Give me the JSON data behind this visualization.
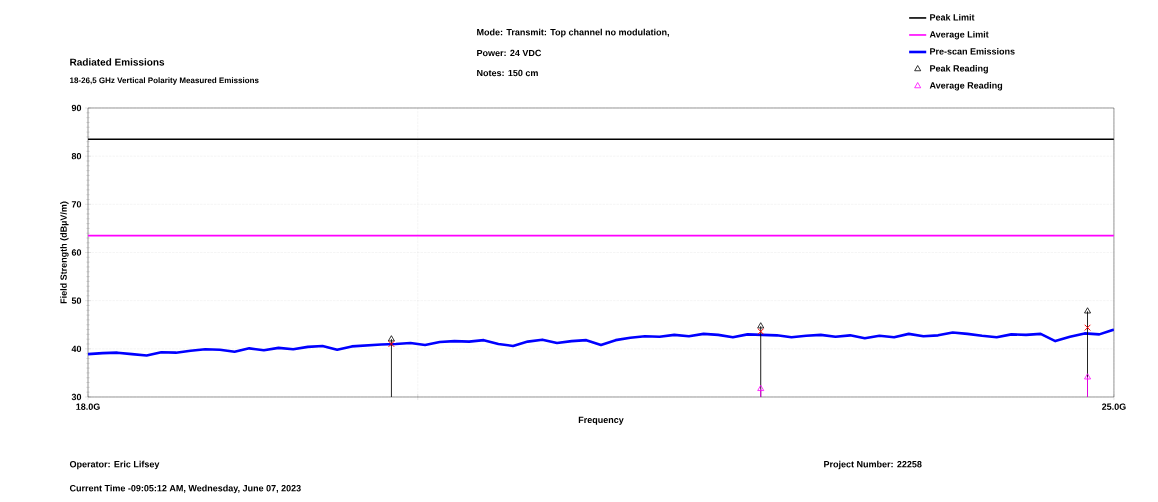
{
  "chart_data": {
    "type": "line",
    "title": "Radiated Emissions",
    "subtitle": "18-26,5 GHz Vertical Polarity Measured Emissions",
    "xlabel": "Frequency",
    "ylabel": "Field Strength (dBµV/m)",
    "xlim": [
      18,
      25
    ],
    "xticks": [
      {
        "value": 18,
        "label": "18.0G"
      },
      {
        "value": 20.25,
        "label": null
      },
      {
        "value": 25,
        "label": "25.0G"
      }
    ],
    "ylim": [
      30,
      90
    ],
    "yticks": [
      30,
      40,
      50,
      60,
      70,
      80,
      90
    ],
    "grid": true,
    "legend": "top right",
    "annotations": [
      "Mode: Transmit: Top channel no modulation,",
      "Power: 24 VDC",
      "Notes: 150 cm",
      "Operator: Eric Lifsey",
      "Current Time -09:05:12 AM, Wednesday, June 07, 2023",
      "Project Number: 22258"
    ],
    "series": [
      {
        "name": "Peak Limit",
        "type": "line",
        "color": "#000000",
        "marker": "none",
        "x": [
          18,
          25
        ],
        "values": [
          83.5,
          83.5
        ]
      },
      {
        "name": "Average Limit",
        "type": "line",
        "color": "#ff00ff",
        "marker": "none",
        "x": [
          18,
          25
        ],
        "values": [
          63.5,
          63.5
        ]
      },
      {
        "name": "Pre-scan Emissions",
        "color": "#0000ff",
        "marker": "none",
        "x": [
          18.0,
          18.1,
          18.2,
          18.3,
          18.4,
          18.5,
          18.6,
          18.7,
          18.8,
          18.9,
          19.0,
          19.1,
          19.2,
          19.3,
          19.4,
          19.5,
          19.6,
          19.7,
          19.8,
          19.9,
          20.0,
          20.1,
          20.2,
          20.3,
          20.4,
          20.5,
          20.6,
          20.7,
          20.8,
          20.9,
          21.0,
          21.1,
          21.2,
          21.3,
          21.4,
          21.5,
          21.6,
          21.7,
          21.8,
          21.9,
          22.0,
          22.1,
          22.2,
          22.3,
          22.4,
          22.5,
          22.6,
          22.7,
          22.8,
          22.9,
          23.0,
          23.1,
          23.2,
          23.3,
          23.4,
          23.5,
          23.6,
          23.7,
          23.8,
          23.9,
          24.0,
          24.1,
          24.2,
          24.3,
          24.4,
          24.5,
          24.6,
          24.7,
          24.8,
          24.9,
          25.0
        ],
        "values": [
          38.9,
          39.1,
          39.2,
          38.9,
          38.6,
          39.3,
          39.2,
          39.6,
          39.9,
          39.8,
          39.4,
          40.1,
          39.7,
          40.2,
          39.9,
          40.4,
          40.6,
          39.8,
          40.5,
          40.7,
          40.9,
          41.0,
          41.2,
          40.8,
          41.4,
          41.6,
          41.5,
          41.8,
          41.0,
          40.6,
          41.5,
          41.9,
          41.2,
          41.6,
          41.8,
          40.8,
          41.8,
          42.3,
          42.6,
          42.5,
          42.9,
          42.6,
          43.1,
          42.9,
          42.4,
          43.0,
          42.9,
          42.8,
          42.4,
          42.7,
          42.9,
          42.5,
          42.8,
          42.2,
          42.7,
          42.4,
          43.1,
          42.6,
          42.8,
          43.4,
          43.1,
          42.7,
          42.4,
          43.0,
          42.9,
          43.1,
          41.6,
          42.5,
          43.2,
          43.0,
          44.0
        ]
      },
      {
        "name": "Peak Reading",
        "type": "lollipop",
        "color": "#000000",
        "marker": "triangle",
        "x": [
          20.07,
          22.59,
          24.82
        ],
        "values": [
          42.0,
          44.7,
          47.8
        ]
      },
      {
        "name": "Average Reading",
        "type": "lollipop",
        "color": "#ff00ff",
        "marker": "triangle",
        "x": [
          22.59,
          24.82
        ],
        "values": [
          31.7,
          34.1
        ]
      },
      {
        "type": "scatter",
        "color": "#ff0000",
        "marker": "cross",
        "x": [
          20.07,
          22.59,
          24.82
        ],
        "values": [
          41.0,
          43.6,
          44.4
        ]
      }
    ]
  }
}
